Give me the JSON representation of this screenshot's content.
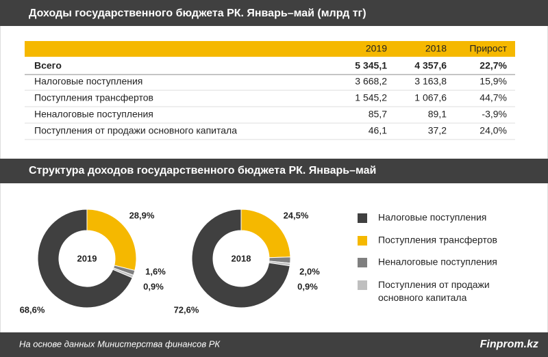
{
  "table": {
    "title": "Доходы государственного бюджета РК. Январь–май (млрд тг)",
    "header": [
      "2019",
      "2018",
      "Прирост"
    ],
    "rows": [
      [
        "Всего",
        "5 345,1",
        "4 357,6",
        "22,7%"
      ],
      [
        "Налоговые поступления",
        "3 668,2",
        "3 163,8",
        "15,9%"
      ],
      [
        "Поступления трансфертов",
        "1 545,2",
        "1 067,6",
        "44,7%"
      ],
      [
        "Неналоговые поступления",
        "85,7",
        "89,1",
        "-3,9%"
      ],
      [
        "Поступления от продажи основного капитала",
        "46,1",
        "37,2",
        "24,0%"
      ]
    ]
  },
  "chart_section_title": "Структура доходов государственного бюджета РК. Январь–май",
  "legend": {
    "categories": [
      "Налоговые поступления",
      "Поступления трансфертов",
      "Неналоговые поступления",
      "Поступления от продажи основного капитала"
    ],
    "colors": [
      "#404040",
      "#f5b800",
      "#7f7f7f",
      "#bfbfbf"
    ]
  },
  "chart_data": [
    {
      "type": "donut",
      "title": "2019",
      "values": [
        68.6,
        28.9,
        1.6,
        0.9
      ],
      "value_labels": [
        "68,6%",
        "28,9%",
        "1,6%",
        "0,9%"
      ]
    },
    {
      "type": "donut",
      "title": "2018",
      "values": [
        72.6,
        24.5,
        2.0,
        0.9
      ],
      "value_labels": [
        "72,6%",
        "24,5%",
        "2,0%",
        "0,9%"
      ]
    }
  ],
  "footer": {
    "source": "На основе данных  Министерства финансов РК",
    "brand": "Finprom.kz"
  }
}
